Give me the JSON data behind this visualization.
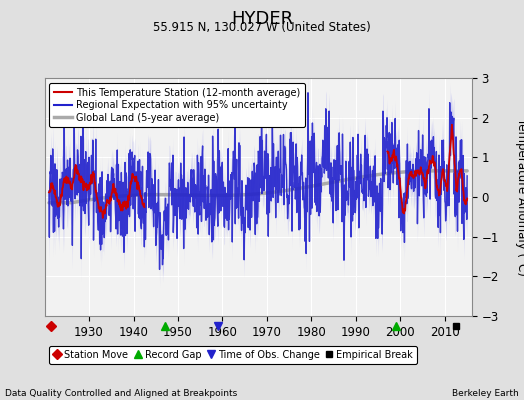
{
  "title": "HYDER",
  "subtitle": "55.915 N, 130.027 W (United States)",
  "ylabel": "Temperature Anomaly (°C)",
  "xlabel_left": "Data Quality Controlled and Aligned at Breakpoints",
  "xlabel_right": "Berkeley Earth",
  "ylim": [
    -3,
    3
  ],
  "xlim": [
    1920,
    2016
  ],
  "yticks": [
    -3,
    -2,
    -1,
    0,
    1,
    2,
    3
  ],
  "xticks": [
    1930,
    1940,
    1950,
    1960,
    1970,
    1980,
    1990,
    2000,
    2010
  ],
  "bg_color": "#e0e0e0",
  "plot_bg_color": "#f2f2f2",
  "grid_color": "#ffffff",
  "uncertainty_color": "#aaaaee",
  "uncertainty_alpha": 0.55,
  "regional_color": "#2222cc",
  "station_color": "#cc0000",
  "global_color": "#aaaaaa",
  "regional_lw": 1.0,
  "station_lw": 1.3,
  "global_lw": 2.5,
  "legend_items": [
    {
      "label": "This Temperature Station (12-month average)",
      "color": "#cc0000",
      "lw": 1.5
    },
    {
      "label": "Regional Expectation with 95% uncertainty",
      "color": "#2222cc",
      "lw": 1.5
    },
    {
      "label": "Global Land (5-year average)",
      "color": "#aaaaaa",
      "lw": 2.5
    }
  ],
  "marker_items": [
    {
      "label": "Station Move",
      "color": "#cc0000",
      "marker": "D",
      "ms": 5
    },
    {
      "label": "Record Gap",
      "color": "#00aa00",
      "marker": "^",
      "ms": 6
    },
    {
      "label": "Time of Obs. Change",
      "color": "#2222cc",
      "marker": "v",
      "ms": 6
    },
    {
      "label": "Empirical Break",
      "color": "#000000",
      "marker": "s",
      "ms": 5
    }
  ],
  "station_moves": [
    1921.5
  ],
  "record_gaps": [
    1947.0,
    1999.0
  ],
  "time_obs_changes": [
    1959.0
  ],
  "empirical_breaks": [
    2012.5
  ],
  "seed": 17
}
